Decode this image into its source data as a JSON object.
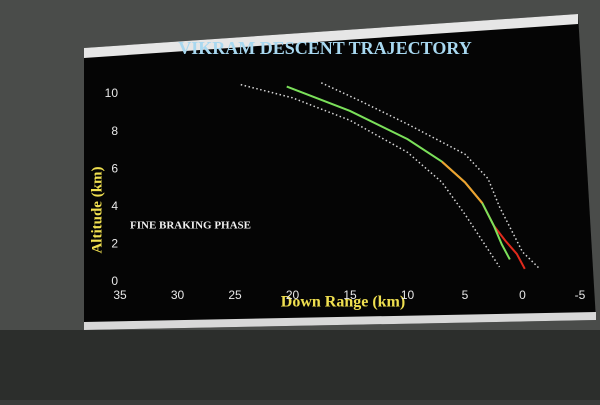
{
  "chart_data": {
    "type": "line",
    "title": "VIKRAM DESCENT TRAJECTORY",
    "x_label": "Down Range (km)",
    "y_label": "Altitude (km)",
    "annotation": "FINE BRAKING PHASE",
    "xlim": [
      35,
      -5
    ],
    "xticks": [
      35,
      30,
      25,
      20,
      15,
      10,
      5,
      0,
      -5
    ],
    "ylim": [
      0,
      10.8
    ],
    "yticks": [
      0,
      2,
      4,
      6,
      8,
      10
    ],
    "grid": false,
    "series": [
      {
        "color": "#d8d8d8",
        "style": "dotted",
        "x": [
          24.5,
          20,
          15,
          10,
          7,
          5,
          3.5,
          2
        ],
        "values": [
          10.5,
          9.8,
          8.6,
          6.9,
          5.3,
          3.6,
          2.2,
          0.8
        ]
      },
      {
        "color": "#d8d8d8",
        "style": "dotted",
        "x": [
          17.5,
          14,
          10,
          5,
          3,
          2,
          1,
          0,
          -1.5
        ],
        "values": [
          10.6,
          9.6,
          8.4,
          6.8,
          5.5,
          4.0,
          2.8,
          1.6,
          0.7
        ]
      },
      {
        "color": "#e02a1c",
        "style": "solid",
        "x": [
          3.5,
          2.5,
          1.5,
          0.5,
          -0.2
        ],
        "values": [
          4.2,
          3.0,
          2.2,
          1.5,
          0.7
        ]
      },
      {
        "color": "#7be05a",
        "style": "solid",
        "x": [
          20.5,
          15,
          10,
          7,
          5,
          3.5,
          2.5,
          1.8,
          1.1
        ],
        "values": [
          10.4,
          9.1,
          7.6,
          6.4,
          5.3,
          4.2,
          3.0,
          2.0,
          1.2
        ]
      },
      {
        "color": "#f0a030",
        "style": "solid",
        "x": [
          7,
          5,
          3.5
        ],
        "values": [
          6.4,
          5.3,
          4.2
        ]
      }
    ]
  }
}
